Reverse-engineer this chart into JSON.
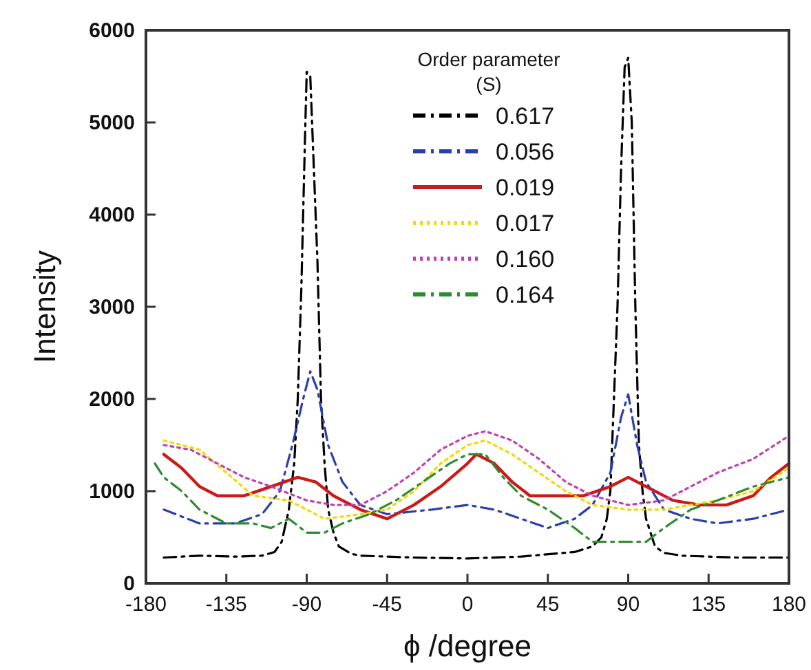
{
  "chart_data": {
    "type": "line",
    "xlabel": "ϕ /degree",
    "ylabel": "Intensity",
    "legend_title": "Order parameter (S)",
    "legend": "top",
    "grid": false,
    "xlim": [
      -180,
      180
    ],
    "xticks": [
      -180,
      -135,
      -90,
      -45,
      0,
      45,
      90,
      135,
      180
    ],
    "ylim": [
      0,
      6000
    ],
    "yticks": [
      0,
      1000,
      2000,
      3000,
      4000,
      5000,
      6000
    ],
    "series": [
      {
        "name": "0.617",
        "color": "#000000",
        "line_style": "dashed",
        "x": [
          -170,
          -150,
          -130,
          -115,
          -108,
          -104,
          -100,
          -97,
          -95,
          -93,
          -91,
          -90,
          -88,
          -86,
          -84,
          -82,
          -80,
          -78,
          -75,
          -72,
          -65,
          -60,
          -30,
          0,
          30,
          60,
          70,
          75,
          78,
          80,
          82,
          84,
          86,
          88,
          90,
          92,
          94,
          96,
          98,
          100,
          105,
          110,
          120,
          150,
          180
        ],
        "values": [
          280,
          300,
          290,
          300,
          340,
          450,
          800,
          1300,
          2000,
          3200,
          4800,
          5550,
          5500,
          4500,
          3500,
          2000,
          1300,
          800,
          550,
          400,
          320,
          300,
          280,
          270,
          290,
          340,
          400,
          500,
          700,
          1000,
          2000,
          3000,
          4500,
          5600,
          5700,
          5000,
          3000,
          1500,
          1000,
          700,
          400,
          330,
          300,
          280,
          280
        ]
      },
      {
        "name": "0.056",
        "color": "#2a3fae",
        "line_style": "dashed",
        "x": [
          -170,
          -150,
          -130,
          -115,
          -105,
          -98,
          -92,
          -88,
          -84,
          -78,
          -70,
          -60,
          -45,
          -20,
          0,
          15,
          30,
          45,
          60,
          70,
          80,
          86,
          90,
          95,
          100,
          110,
          125,
          140,
          160,
          180
        ],
        "values": [
          800,
          650,
          650,
          750,
          1000,
          1500,
          2000,
          2300,
          2100,
          1500,
          1100,
          850,
          750,
          800,
          850,
          800,
          700,
          600,
          700,
          850,
          1200,
          1800,
          2050,
          1500,
          1100,
          800,
          700,
          650,
          700,
          800
        ]
      },
      {
        "name": "0.019",
        "color": "#cc1a1a",
        "line_style": "solid",
        "x": [
          -170,
          -160,
          -150,
          -140,
          -125,
          -110,
          -95,
          -85,
          -75,
          -60,
          -45,
          -30,
          -15,
          0,
          5,
          15,
          25,
          35,
          50,
          65,
          80,
          90,
          100,
          115,
          130,
          145,
          160,
          170,
          180
        ],
        "values": [
          1400,
          1250,
          1050,
          950,
          950,
          1050,
          1150,
          1100,
          950,
          800,
          700,
          850,
          1050,
          1300,
          1400,
          1300,
          1100,
          950,
          950,
          950,
          1050,
          1150,
          1050,
          900,
          850,
          850,
          950,
          1150,
          1300
        ]
      },
      {
        "name": "0.017",
        "color": "#f5d800",
        "line_style": "dotted",
        "x": [
          -170,
          -160,
          -150,
          -135,
          -120,
          -100,
          -80,
          -60,
          -45,
          -30,
          -15,
          0,
          10,
          25,
          40,
          55,
          70,
          90,
          110,
          125,
          140,
          160,
          180
        ],
        "values": [
          1550,
          1500,
          1450,
          1200,
          950,
          900,
          700,
          750,
          800,
          1000,
          1300,
          1500,
          1550,
          1400,
          1200,
          1000,
          850,
          800,
          800,
          850,
          900,
          1000,
          1250
        ]
      },
      {
        "name": "0.160",
        "color": "#c040b0",
        "line_style": "dotted",
        "x": [
          -170,
          -155,
          -140,
          -125,
          -110,
          -90,
          -75,
          -60,
          -45,
          -30,
          -15,
          0,
          10,
          25,
          40,
          55,
          70,
          90,
          110,
          125,
          140,
          160,
          180
        ],
        "values": [
          1500,
          1450,
          1300,
          1150,
          1050,
          900,
          850,
          850,
          1000,
          1200,
          1450,
          1600,
          1650,
          1550,
          1350,
          1100,
          950,
          850,
          900,
          1050,
          1200,
          1350,
          1600
        ]
      },
      {
        "name": "0.164",
        "color": "#2e8b2e",
        "line_style": "dashed",
        "x": [
          -175,
          -170,
          -160,
          -150,
          -135,
          -120,
          -110,
          -100,
          -90,
          -80,
          -70,
          -55,
          -40,
          -25,
          -10,
          0,
          10,
          20,
          30,
          45,
          60,
          70,
          80,
          100,
          110,
          125,
          140,
          160,
          180
        ],
        "values": [
          1300,
          1150,
          1000,
          800,
          650,
          650,
          600,
          700,
          550,
          550,
          650,
          750,
          900,
          1100,
          1300,
          1400,
          1400,
          1150,
          950,
          800,
          600,
          450,
          450,
          450,
          600,
          800,
          900,
          1050,
          1150
        ]
      }
    ]
  }
}
